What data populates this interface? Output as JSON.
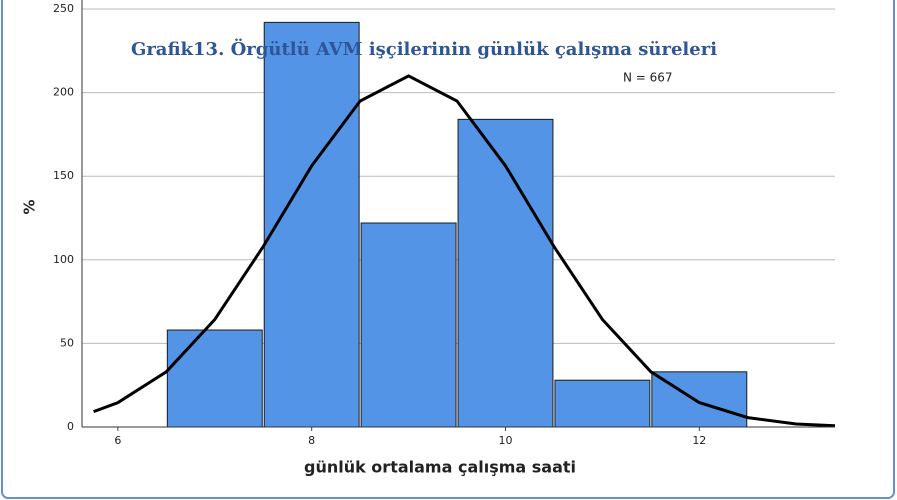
{
  "chart_data": {
    "type": "histogram",
    "title": "Grafik13. Örgütlü AVM işçilerinin günlük çalışma süreleri",
    "annotation": "N = 667",
    "xlabel": "günlük ortalama çalışma saati",
    "ylabel": "%",
    "bins": [
      6.5,
      7.5,
      8.5,
      9.5,
      10.5,
      11.5,
      12.5
    ],
    "values": [
      58,
      242,
      122,
      184,
      28,
      33
    ],
    "color": "#5494e6",
    "curve": {
      "color": "#000000",
      "x": [
        5.75,
        6,
        6.5,
        7,
        7.5,
        8,
        8.5,
        9,
        9.5,
        10,
        10.5,
        11,
        11.5,
        12,
        12.5,
        13,
        13.4
      ],
      "values": [
        9.2,
        14.6,
        33,
        64.3,
        107.9,
        156.2,
        195,
        210,
        195,
        156.2,
        107.9,
        64.3,
        33,
        14.6,
        5.6,
        1.8,
        0.7
      ]
    },
    "xlim": [
      5.63,
      13.4
    ],
    "xticks": [
      6,
      8,
      10,
      12
    ],
    "ylim": [
      0,
      250
    ],
    "yticks": [
      0,
      50,
      100,
      150,
      200,
      250
    ],
    "grid": true
  }
}
